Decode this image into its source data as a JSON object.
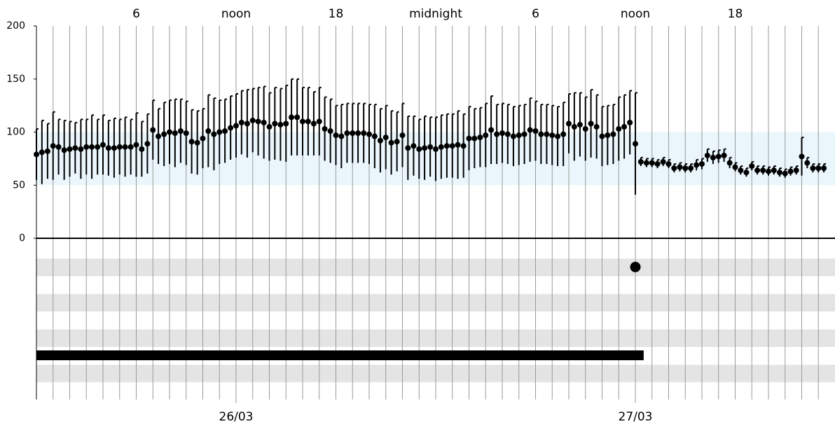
{
  "chart_data": {
    "type": "errorbar",
    "xlim": [
      0,
      48
    ],
    "xticks": [
      6,
      {
        "value": 12,
        "label": "noon"
      },
      18,
      {
        "value": 24,
        "label": "midnight"
      },
      {
        "value": 30,
        "label": "6"
      },
      {
        "value": 36,
        "label": "noon"
      },
      {
        "value": 42,
        "label": "18"
      }
    ],
    "date_ticks": [
      {
        "value": 12,
        "label": "26/03"
      },
      {
        "value": 36,
        "label": "27/03"
      }
    ],
    "x_gridlines": [
      0,
      1,
      2,
      3,
      4,
      5,
      6,
      7,
      8,
      9,
      10,
      11,
      12,
      13,
      14,
      15,
      16,
      17,
      18,
      19,
      20,
      21,
      22,
      23,
      24,
      25,
      26,
      27,
      28,
      29,
      30,
      31,
      32,
      33,
      34,
      35,
      36,
      37,
      38,
      39,
      40,
      41,
      42,
      43,
      44,
      45,
      46,
      47
    ],
    "ylim": [
      0,
      200
    ],
    "yticks": [
      0,
      50,
      100,
      150,
      200
    ],
    "normal_range": [
      50,
      100
    ],
    "color": "#000000",
    "band_color": "#eaf6fb",
    "x": [
      0,
      0.33,
      0.67,
      1,
      1.33,
      1.67,
      2,
      2.33,
      2.67,
      3,
      3.33,
      3.67,
      4,
      4.33,
      4.67,
      5,
      5.33,
      5.67,
      6,
      6.33,
      6.67,
      7,
      7.33,
      7.67,
      8,
      8.33,
      8.67,
      9,
      9.33,
      9.67,
      10,
      10.33,
      10.67,
      11,
      11.33,
      11.67,
      12,
      12.33,
      12.67,
      13,
      13.33,
      13.67,
      14,
      14.33,
      14.67,
      15,
      15.33,
      15.67,
      16,
      16.33,
      16.67,
      17,
      17.33,
      17.67,
      18,
      18.33,
      18.67,
      19,
      19.33,
      19.67,
      20,
      20.33,
      20.67,
      21,
      21.33,
      21.67,
      22,
      22.33,
      22.67,
      23,
      23.33,
      23.67,
      24,
      24.33,
      24.67,
      25,
      25.33,
      25.67,
      26,
      26.33,
      26.67,
      27,
      27.33,
      27.67,
      28,
      28.33,
      28.67,
      29,
      29.33,
      29.67,
      30,
      30.33,
      30.67,
      31,
      31.33,
      31.67,
      32,
      32.33,
      32.67,
      33,
      33.33,
      33.67,
      34,
      34.33,
      34.67,
      35,
      35.33,
      35.67,
      36,
      36.33,
      36.67,
      37,
      37.33,
      37.67,
      38,
      38.33,
      38.67,
      39,
      39.33,
      39.67,
      40,
      40.33,
      40.67,
      41,
      41.33,
      41.67,
      42,
      42.33,
      42.67,
      43,
      43.33,
      43.67,
      44,
      44.33,
      44.67,
      45,
      45.33,
      45.67,
      46,
      46.33,
      46.67,
      47,
      47.33
    ],
    "values": [
      79,
      81,
      82,
      87,
      86,
      83,
      84,
      85,
      84,
      86,
      86,
      86,
      88,
      85,
      85,
      86,
      86,
      86,
      88,
      84,
      89,
      102,
      96,
      98,
      100,
      99,
      101,
      99,
      91,
      90,
      94,
      101,
      98,
      100,
      101,
      104,
      106,
      109,
      108,
      111,
      110,
      109,
      105,
      108,
      107,
      108,
      114,
      114,
      110,
      110,
      108,
      110,
      103,
      101,
      97,
      96,
      99,
      99,
      99,
      99,
      98,
      96,
      92,
      95,
      90,
      91,
      97,
      85,
      87,
      84,
      85,
      86,
      84,
      86,
      87,
      87,
      88,
      87,
      94,
      94,
      95,
      97,
      102,
      98,
      99,
      98,
      96,
      97,
      98,
      102,
      101,
      98,
      98,
      97,
      96,
      98,
      108,
      105,
      107,
      103,
      108,
      105,
      96,
      97,
      98,
      103,
      105,
      109,
      89,
      72,
      71,
      71,
      70,
      72,
      70,
      66,
      67,
      66,
      66,
      69,
      70,
      78,
      76,
      77,
      78,
      71,
      67,
      64,
      62,
      68,
      64,
      64,
      63,
      64,
      62,
      61,
      63,
      64,
      77,
      71,
      66,
      66,
      66
    ],
    "errors": [
      24,
      30,
      26,
      32,
      26,
      28,
      26,
      24,
      28,
      26,
      30,
      26,
      28,
      26,
      28,
      26,
      28,
      26,
      30,
      26,
      28,
      28,
      26,
      30,
      30,
      32,
      30,
      30,
      30,
      30,
      28,
      34,
      34,
      30,
      30,
      30,
      30,
      30,
      32,
      30,
      32,
      34,
      32,
      34,
      34,
      36,
      36,
      36,
      32,
      32,
      30,
      32,
      30,
      30,
      28,
      30,
      28,
      28,
      28,
      28,
      28,
      30,
      30,
      30,
      30,
      28,
      30,
      30,
      28,
      28,
      30,
      28,
      30,
      30,
      30,
      30,
      32,
      30,
      30,
      28,
      28,
      30,
      32,
      28,
      28,
      28,
      28,
      28,
      28,
      30,
      28,
      28,
      28,
      28,
      28,
      30,
      28,
      32,
      30,
      30,
      32,
      30,
      28,
      28,
      28,
      30,
      30,
      30,
      48,
      4,
      4,
      4,
      4,
      4,
      4,
      4,
      4,
      4,
      4,
      5,
      5,
      6,
      6,
      6,
      6,
      5,
      4,
      4,
      4,
      4,
      4,
      4,
      4,
      4,
      4,
      4,
      4,
      4,
      18,
      5,
      4,
      4,
      4
    ],
    "event_dot_x": 36,
    "event_bar_x": [
      0,
      36.5
    ]
  }
}
